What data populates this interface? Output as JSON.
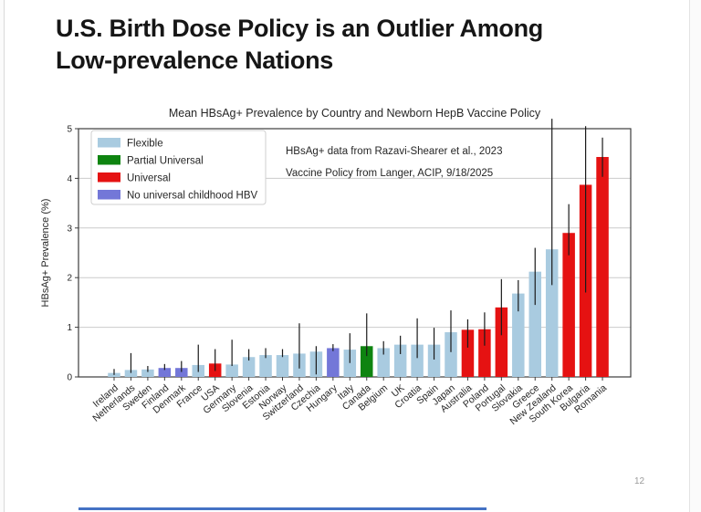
{
  "slide": {
    "title_line1": "U.S. Birth Dose Policy is an Outlier Among",
    "title_line2": "Low-prevalence Nations",
    "page_number": "12"
  },
  "chart_data": {
    "type": "bar",
    "title": "Mean HBsAg+ Prevalence by Country and Newborn HepB Vaccine Policy",
    "xlabel": "",
    "ylabel": "HBsAg+ Prevalence (%)",
    "ylim": [
      0,
      5
    ],
    "yticks": [
      0,
      1,
      2,
      3,
      4,
      5
    ],
    "grid": true,
    "legend_position": "upper-left",
    "legend_labels": [
      "Flexible",
      "Partial Universal",
      "Universal",
      "No universal childhood HBV"
    ],
    "policy_colors": {
      "Flexible": "#a9cbe0",
      "Partial Universal": "#0e8410",
      "Universal": "#e51212",
      "No universal childhood HBV": "#7377d8"
    },
    "annotations": [
      "HBsAg+ data from Razavi-Shearer et al., 2023",
      "Vaccine Policy from Langer, ACIP, 9/18/2025"
    ],
    "bars": [
      {
        "country": "Ireland",
        "policy": "Flexible",
        "value": 0.08,
        "err_low": 0.04,
        "err_high": 0.16
      },
      {
        "country": "Netherlands",
        "policy": "Flexible",
        "value": 0.14,
        "err_low": 0.08,
        "err_high": 0.48
      },
      {
        "country": "Sweden",
        "policy": "Flexible",
        "value": 0.15,
        "err_low": 0.1,
        "err_high": 0.22
      },
      {
        "country": "Finland",
        "policy": "No universal childhood HBV",
        "value": 0.18,
        "err_low": 0.14,
        "err_high": 0.26
      },
      {
        "country": "Denmark",
        "policy": "No universal childhood HBV",
        "value": 0.18,
        "err_low": 0.1,
        "err_high": 0.32
      },
      {
        "country": "France",
        "policy": "Flexible",
        "value": 0.24,
        "err_low": 0.1,
        "err_high": 0.65
      },
      {
        "country": "USA",
        "policy": "Universal",
        "value": 0.27,
        "err_low": 0.12,
        "err_high": 0.56
      },
      {
        "country": "Germany",
        "policy": "Flexible",
        "value": 0.25,
        "err_low": 0.22,
        "err_high": 0.75
      },
      {
        "country": "Slovenia",
        "policy": "Flexible",
        "value": 0.4,
        "err_low": 0.33,
        "err_high": 0.56
      },
      {
        "country": "Estonia",
        "policy": "Flexible",
        "value": 0.44,
        "err_low": 0.38,
        "err_high": 0.58
      },
      {
        "country": "Norway",
        "policy": "Flexible",
        "value": 0.44,
        "err_low": 0.4,
        "err_high": 0.56
      },
      {
        "country": "Switzerland",
        "policy": "Flexible",
        "value": 0.47,
        "err_low": 0.17,
        "err_high": 1.08
      },
      {
        "country": "Czechia",
        "policy": "Flexible",
        "value": 0.51,
        "err_low": 0.05,
        "err_high": 0.62
      },
      {
        "country": "Hungary",
        "policy": "No universal childhood HBV",
        "value": 0.58,
        "err_low": 0.52,
        "err_high": 0.66
      },
      {
        "country": "Italy",
        "policy": "Flexible",
        "value": 0.55,
        "err_low": 0.28,
        "err_high": 0.88
      },
      {
        "country": "Canada",
        "policy": "Partial Universal",
        "value": 0.62,
        "err_low": 0.42,
        "err_high": 1.28
      },
      {
        "country": "Belgium",
        "policy": "Flexible",
        "value": 0.58,
        "err_low": 0.45,
        "err_high": 0.72
      },
      {
        "country": "UK",
        "policy": "Flexible",
        "value": 0.65,
        "err_low": 0.46,
        "err_high": 0.83
      },
      {
        "country": "Croatia",
        "policy": "Flexible",
        "value": 0.65,
        "err_low": 0.38,
        "err_high": 1.18
      },
      {
        "country": "Spain",
        "policy": "Flexible",
        "value": 0.65,
        "err_low": 0.35,
        "err_high": 0.99
      },
      {
        "country": "Japan",
        "policy": "Flexible",
        "value": 0.9,
        "err_low": 0.5,
        "err_high": 1.34
      },
      {
        "country": "Australia",
        "policy": "Universal",
        "value": 0.95,
        "err_low": 0.59,
        "err_high": 1.16
      },
      {
        "country": "Poland",
        "policy": "Universal",
        "value": 0.96,
        "err_low": 0.63,
        "err_high": 1.3
      },
      {
        "country": "Portugal",
        "policy": "Universal",
        "value": 1.4,
        "err_low": 0.84,
        "err_high": 1.97
      },
      {
        "country": "Slovakia",
        "policy": "Flexible",
        "value": 1.68,
        "err_low": 1.32,
        "err_high": 1.95
      },
      {
        "country": "Greece",
        "policy": "Flexible",
        "value": 2.12,
        "err_low": 1.45,
        "err_high": 2.6
      },
      {
        "country": "New Zealand",
        "policy": "Flexible",
        "value": 2.57,
        "err_low": 1.85,
        "err_high": 5.2
      },
      {
        "country": "South Korea",
        "policy": "Universal",
        "value": 2.9,
        "err_low": 2.45,
        "err_high": 3.48
      },
      {
        "country": "Bulgaria",
        "policy": "Universal",
        "value": 3.87,
        "err_low": 1.7,
        "err_high": 5.05
      },
      {
        "country": "Romania",
        "policy": "Universal",
        "value": 4.43,
        "err_low": 4.03,
        "err_high": 4.82
      }
    ]
  }
}
